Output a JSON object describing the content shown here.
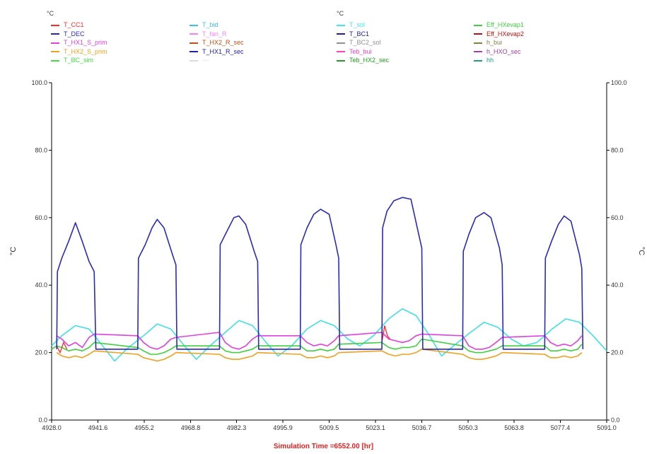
{
  "legend": {
    "group1_unit": "°C",
    "group2_unit": "°C",
    "columns": [
      [
        {
          "label": "T_CC1",
          "color": "#ff2a2a"
        },
        {
          "label": "T_DEC",
          "color": "#2626c8"
        },
        {
          "label": "T_HX1_S_prim",
          "color": "#e040e0"
        },
        {
          "label": "T_HX2_S_prim",
          "color": "#f0a020"
        },
        {
          "label": "T_BC_sim",
          "color": "#40e040"
        }
      ],
      [
        {
          "label": "T_bid",
          "color": "#40c0e0"
        },
        {
          "label": "T_fan_R",
          "color": "#ff80ff"
        },
        {
          "label": "T_HX2_R_sec",
          "color": "#c05010"
        },
        {
          "label": "T_HX1_R_sec",
          "color": "#2020b0"
        },
        {
          "label": "---",
          "color": "#d8d8f0"
        }
      ],
      [
        {
          "label": "T_sol",
          "color": "#40e8e8"
        },
        {
          "label": "T_BC1",
          "color": "#2020a0"
        },
        {
          "label": "T_BC2_sol",
          "color": "#909090"
        },
        {
          "label": "Teb_bui",
          "color": "#ff40c0"
        },
        {
          "label": "Teb_HX2_sec",
          "color": "#20a020"
        }
      ],
      [
        {
          "label": "Eff_HXevap1",
          "color": "#40d040"
        },
        {
          "label": "Eff_HXevap2",
          "color": "#c01010"
        },
        {
          "label": "h_bui",
          "color": "#808040"
        },
        {
          "label": "h_HXO_sec",
          "color": "#a040a0"
        },
        {
          "label": "hh",
          "color": "#20a080"
        }
      ]
    ]
  },
  "footer": "Simulation Time =6552.00 [hr]",
  "chart_data": {
    "type": "line",
    "ylabel_left": "°C",
    "ylabel_right": "°C",
    "xlim": [
      4928.0,
      5091.0
    ],
    "ylim": [
      0,
      100
    ],
    "x_ticks": [
      "4928.0",
      "4941.6",
      "4955.2",
      "4968.8",
      "4982.3",
      "4995.9",
      "5009.5",
      "5023.1",
      "5036.7",
      "5050.3",
      "5063.8",
      "5077.4",
      "5091.0"
    ],
    "y_ticks": [
      "0.0",
      "20.0",
      "40.0",
      "60.0",
      "80.0",
      "100.0"
    ],
    "grid": false,
    "cycles": [
      {
        "start": 4929.5,
        "end": 4940.5,
        "peak": 58.5,
        "peak_at": 4935.0
      },
      {
        "start": 4953.3,
        "end": 4964.5,
        "peak": 59.5,
        "peak_at": 4959.0
      },
      {
        "start": 4977.3,
        "end": 4988.5,
        "peak": 60.5,
        "peak_at": 4983.0
      },
      {
        "start": 5001.0,
        "end": 5012.3,
        "peak": 62.5,
        "peak_at": 5007.0
      },
      {
        "start": 5025.0,
        "end": 5036.7,
        "peak": 66.0,
        "peak_at": 5031.0
      },
      {
        "start": 5048.7,
        "end": 5060.3,
        "peak": 61.5,
        "peak_at": 5055.0
      },
      {
        "start": 5072.8,
        "end": 5083.7,
        "peak": 60.5,
        "peak_at": 5078.5
      }
    ],
    "series": [
      {
        "name": "T_DEC",
        "color": "#2a2ab8",
        "x": [
          4929.5,
          4929.7,
          4931.0,
          4933.0,
          4935.0,
          4937.0,
          4939.0,
          4940.5,
          4941.0,
          4953.3,
          4953.5,
          4955.5,
          4957.5,
          4959.0,
          4961.0,
          4963.5,
          4964.5,
          4964.8,
          4977.3,
          4977.5,
          4979.5,
          4981.5,
          4983.0,
          4985.0,
          4987.5,
          4988.5,
          4988.8,
          5001.0,
          5001.2,
          5003.0,
          5005.0,
          5007.0,
          5009.5,
          5011.5,
          5012.3,
          5012.6,
          5025.0,
          5025.2,
          5026.5,
          5028.5,
          5031.0,
          5033.5,
          5035.8,
          5036.7,
          5037.0,
          5048.7,
          5048.9,
          5050.5,
          5052.5,
          5055.0,
          5057.0,
          5059.5,
          5060.3,
          5060.6,
          5072.8,
          5073.0,
          5074.8,
          5076.8,
          5078.5,
          5080.5,
          5083.0,
          5083.7,
          5084.0
        ],
        "y": [
          21,
          44,
          48,
          53,
          58.5,
          53,
          47,
          44,
          21,
          21,
          48,
          52,
          57,
          59.5,
          57,
          49,
          46,
          21,
          21,
          52,
          56,
          60,
          60.5,
          58,
          50,
          47,
          21,
          21,
          52,
          57,
          61,
          62.5,
          61,
          52,
          48,
          21,
          21,
          57,
          62,
          65,
          66,
          65.5,
          55,
          51,
          21,
          21,
          50,
          55,
          60,
          61.5,
          60,
          51,
          46,
          21,
          21,
          48,
          53,
          58,
          60.5,
          59,
          49,
          45,
          21
        ]
      },
      {
        "name": "T_sol",
        "color": "#40e0e8",
        "x": [
          4928.0,
          4931.0,
          4935.0,
          4939.0,
          4943.0,
          4946.5,
          4950.0,
          4955.0,
          4959.0,
          4963.0,
          4967.0,
          4970.5,
          4974.5,
          4979.0,
          4983.0,
          4987.0,
          4991.0,
          4994.5,
          4998.5,
          5003.0,
          5007.0,
          5011.0,
          5015.0,
          5018.5,
          5022.5,
          5027.0,
          5031.0,
          5035.0,
          5039.0,
          5042.5,
          5046.0,
          5051.0,
          5055.0,
          5059.0,
          5063.0,
          5066.5,
          5070.5,
          5075.0,
          5079.0,
          5083.0,
          5087.0,
          5091.0
        ],
        "y": [
          22,
          25,
          28,
          27,
          22,
          17.5,
          21,
          25,
          28.5,
          27,
          22,
          18,
          22,
          26,
          29.5,
          28,
          23,
          19,
          22,
          27,
          29.5,
          28,
          24,
          22,
          25,
          30,
          33,
          31,
          25,
          19,
          22,
          26,
          29,
          27.5,
          24,
          22,
          23,
          27,
          30,
          29,
          25,
          20.5
        ]
      },
      {
        "name": "T_HX1_S_prim",
        "color": "#e040e0",
        "x": [
          4929.5,
          4931.0,
          4933.0,
          4935.0,
          4937.0,
          4939.0,
          4940.5,
          4953.3,
          4955.0,
          4957.0,
          4959.0,
          4961.0,
          4963.0,
          4964.5,
          4977.3,
          4979.0,
          4981.0,
          4983.0,
          4985.0,
          4987.0,
          4988.5,
          5001.0,
          5003.0,
          5005.0,
          5007.0,
          5009.0,
          5011.0,
          5012.3,
          5025.0,
          5027.0,
          5029.0,
          5031.0,
          5033.0,
          5035.0,
          5036.7,
          5048.7,
          5050.5,
          5052.5,
          5054.5,
          5056.5,
          5058.5,
          5060.3,
          5072.8,
          5074.5,
          5076.5,
          5078.5,
          5080.5,
          5082.5,
          5083.7
        ],
        "y": [
          25,
          24,
          22,
          23,
          21.5,
          24.5,
          25.5,
          25,
          23,
          21.5,
          21,
          22,
          24,
          24.5,
          26,
          23,
          21.5,
          21,
          22,
          24,
          25,
          25,
          23,
          22,
          22.5,
          22,
          23.5,
          25,
          26,
          24,
          23.5,
          23,
          23.5,
          25,
          25.5,
          25,
          22,
          21,
          21,
          21.5,
          23,
          24.5,
          25,
          23,
          22,
          22.5,
          22,
          23.5,
          25
        ]
      },
      {
        "name": "T_HX2_S_prim",
        "color": "#f0a020",
        "x": [
          4929.5,
          4931.0,
          4933.0,
          4935.0,
          4937.0,
          4939.0,
          4940.5,
          4953.3,
          4955.0,
          4957.0,
          4959.0,
          4961.0,
          4963.0,
          4964.5,
          4977.3,
          4979.0,
          4981.0,
          4983.0,
          4985.0,
          4987.0,
          4988.5,
          5001.0,
          5003.0,
          5005.0,
          5007.0,
          5009.0,
          5011.0,
          5012.3,
          5025.0,
          5027.0,
          5029.0,
          5031.0,
          5033.0,
          5035.0,
          5036.7,
          5048.7,
          5050.5,
          5052.5,
          5054.5,
          5056.5,
          5058.5,
          5060.3,
          5072.8,
          5074.5,
          5076.5,
          5078.5,
          5080.5,
          5082.5,
          5083.7
        ],
        "y": [
          20,
          19,
          18.5,
          19,
          18.5,
          19.5,
          20.5,
          19.5,
          18.5,
          18,
          17.5,
          18,
          19,
          20,
          19.5,
          18.5,
          18,
          18,
          18.5,
          19,
          20,
          19.5,
          18.5,
          18.5,
          19,
          18.5,
          19,
          20,
          20.5,
          19.5,
          19,
          19.5,
          19.5,
          20,
          21,
          19.5,
          18.5,
          18,
          18,
          18.5,
          19,
          20,
          19.5,
          18.5,
          18.5,
          19,
          18.5,
          19,
          20
        ]
      },
      {
        "name": "T_BC_sim",
        "color": "#40d040",
        "x": [
          4928.0,
          4929.5,
          4931.0,
          4933.0,
          4935.0,
          4937.0,
          4939.0,
          4940.5,
          4953.3,
          4955.0,
          4957.0,
          4959.0,
          4961.0,
          4963.0,
          4964.5,
          4977.3,
          4979.0,
          4981.0,
          4983.0,
          4985.0,
          4987.0,
          4988.5,
          5001.0,
          5003.0,
          5005.0,
          5007.0,
          5009.0,
          5011.0,
          5012.3,
          5025.0,
          5027.0,
          5029.0,
          5031.0,
          5033.0,
          5035.0,
          5036.7,
          5048.7,
          5050.5,
          5052.5,
          5054.5,
          5056.5,
          5058.5,
          5060.3,
          5072.8,
          5074.5,
          5076.5,
          5078.5,
          5080.5,
          5082.5,
          5083.7
        ],
        "y": [
          21,
          22,
          21.5,
          20.5,
          21,
          20.5,
          21.5,
          23,
          21.5,
          20.5,
          19.5,
          19.5,
          20,
          21,
          22,
          22,
          20.5,
          20,
          20,
          20.5,
          21,
          22,
          22,
          20.5,
          20.5,
          21,
          20.5,
          21,
          22.5,
          23,
          21.5,
          21,
          21.5,
          21.5,
          22,
          24,
          22,
          20.5,
          20,
          20,
          20.5,
          21,
          22,
          22,
          20.5,
          20.5,
          21,
          20.5,
          21,
          22.5
        ]
      },
      {
        "name": "T_CC1",
        "color": "#ff2a2a",
        "x": [
          4929.5,
          4930.5,
          4931.5,
          4932.5,
          5025.0,
          5025.8,
          5026.6,
          5027.4
        ],
        "y": [
          22,
          20,
          23,
          21,
          23,
          28,
          25,
          24
        ]
      }
    ]
  }
}
